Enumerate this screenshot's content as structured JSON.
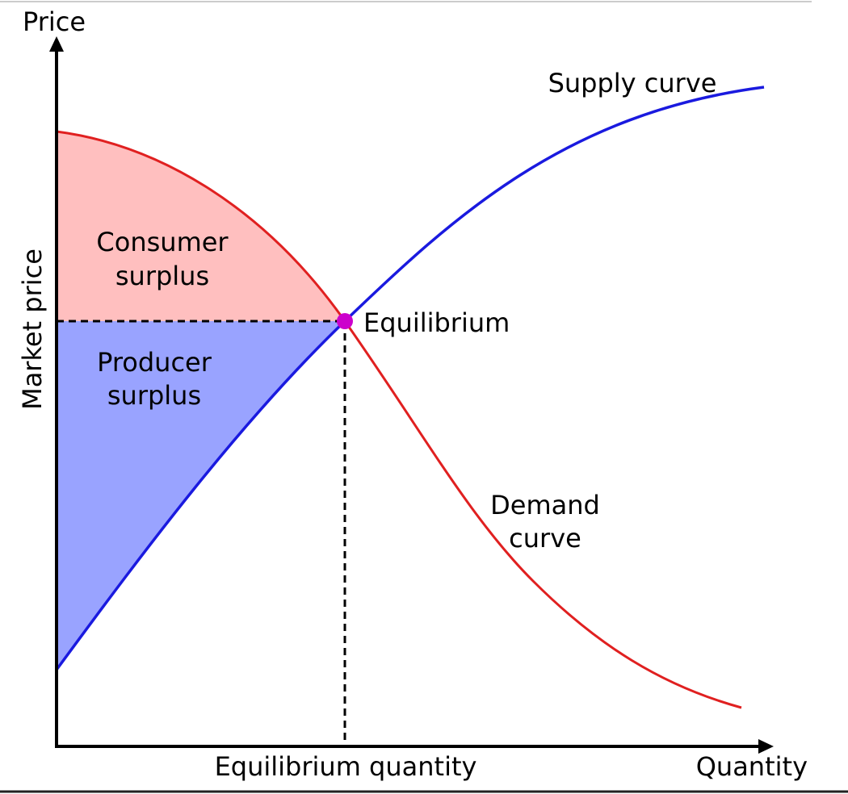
{
  "diagram": {
    "axes": {
      "y_label": "Price",
      "x_label": "Quantity",
      "y_marker": "Market price",
      "x_marker": "Equilibrium quantity"
    },
    "curves": {
      "supply": "Supply curve",
      "demand": [
        "Demand",
        "curve"
      ]
    },
    "regions": {
      "consumer_surplus": [
        "Consumer",
        "surplus"
      ],
      "producer_surplus": [
        "Producer",
        "surplus"
      ]
    },
    "point": "Equilibrium"
  }
}
